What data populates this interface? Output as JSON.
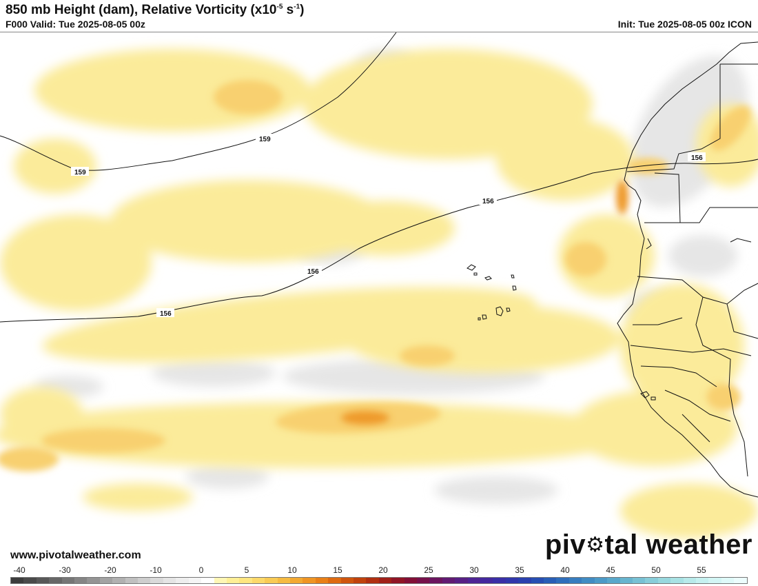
{
  "header": {
    "title_main": "850 mb Height (dam), Relative Vorticity (x10",
    "title_exp": "-5",
    "title_unit": " s",
    "title_unit_exp": "-1",
    "title_close": ")",
    "valid": "F000 Valid: Tue 2025-08-05 00z",
    "init": "Init: Tue 2025-08-05 00z ICON"
  },
  "contours": {
    "labels": [
      "159",
      "159",
      "156",
      "156",
      "156",
      "156"
    ]
  },
  "footer": {
    "website": "www.pivotalweather.com",
    "brand_left": "piv",
    "brand_right": "tal weather",
    "brand_icon": "gear-icon"
  },
  "colorbar": {
    "ticks": [
      "-40",
      "-30",
      "-20",
      "-10",
      "0",
      "5",
      "10",
      "15",
      "20",
      "25",
      "30",
      "35",
      "40",
      "45",
      "50",
      "55"
    ],
    "colors": [
      "#3c3c3c",
      "#4a4a4a",
      "#585858",
      "#676767",
      "#767676",
      "#858585",
      "#949494",
      "#a3a3a3",
      "#b1b1b1",
      "#c0c0c0",
      "#cecece",
      "#dadada",
      "#e5e5e5",
      "#eeeeee",
      "#f5f5f5",
      "#ffffff",
      "#fff7b5",
      "#ffef96",
      "#ffe680",
      "#fcd96a",
      "#f9cb55",
      "#f6bb42",
      "#f3a932",
      "#ef9524",
      "#e98017",
      "#de6a10",
      "#cf550d",
      "#c0420c",
      "#b02f10",
      "#a02018",
      "#901525",
      "#820f36",
      "#76104a",
      "#6b145e",
      "#611a72",
      "#571f84",
      "#4e2494",
      "#44289e",
      "#3a2ea6",
      "#3136ab",
      "#2a40ae",
      "#274eb2",
      "#295eb6",
      "#2f6ebb",
      "#377dbf",
      "#418cc3",
      "#4c9ac7",
      "#59a8cb",
      "#68b5cf",
      "#78c1d4",
      "#88cdd9",
      "#98d8de",
      "#a8e2e4",
      "#b8eaea",
      "#c6f1f0",
      "#d3f6f5",
      "#dffaf9",
      "#ecfdfd"
    ]
  }
}
